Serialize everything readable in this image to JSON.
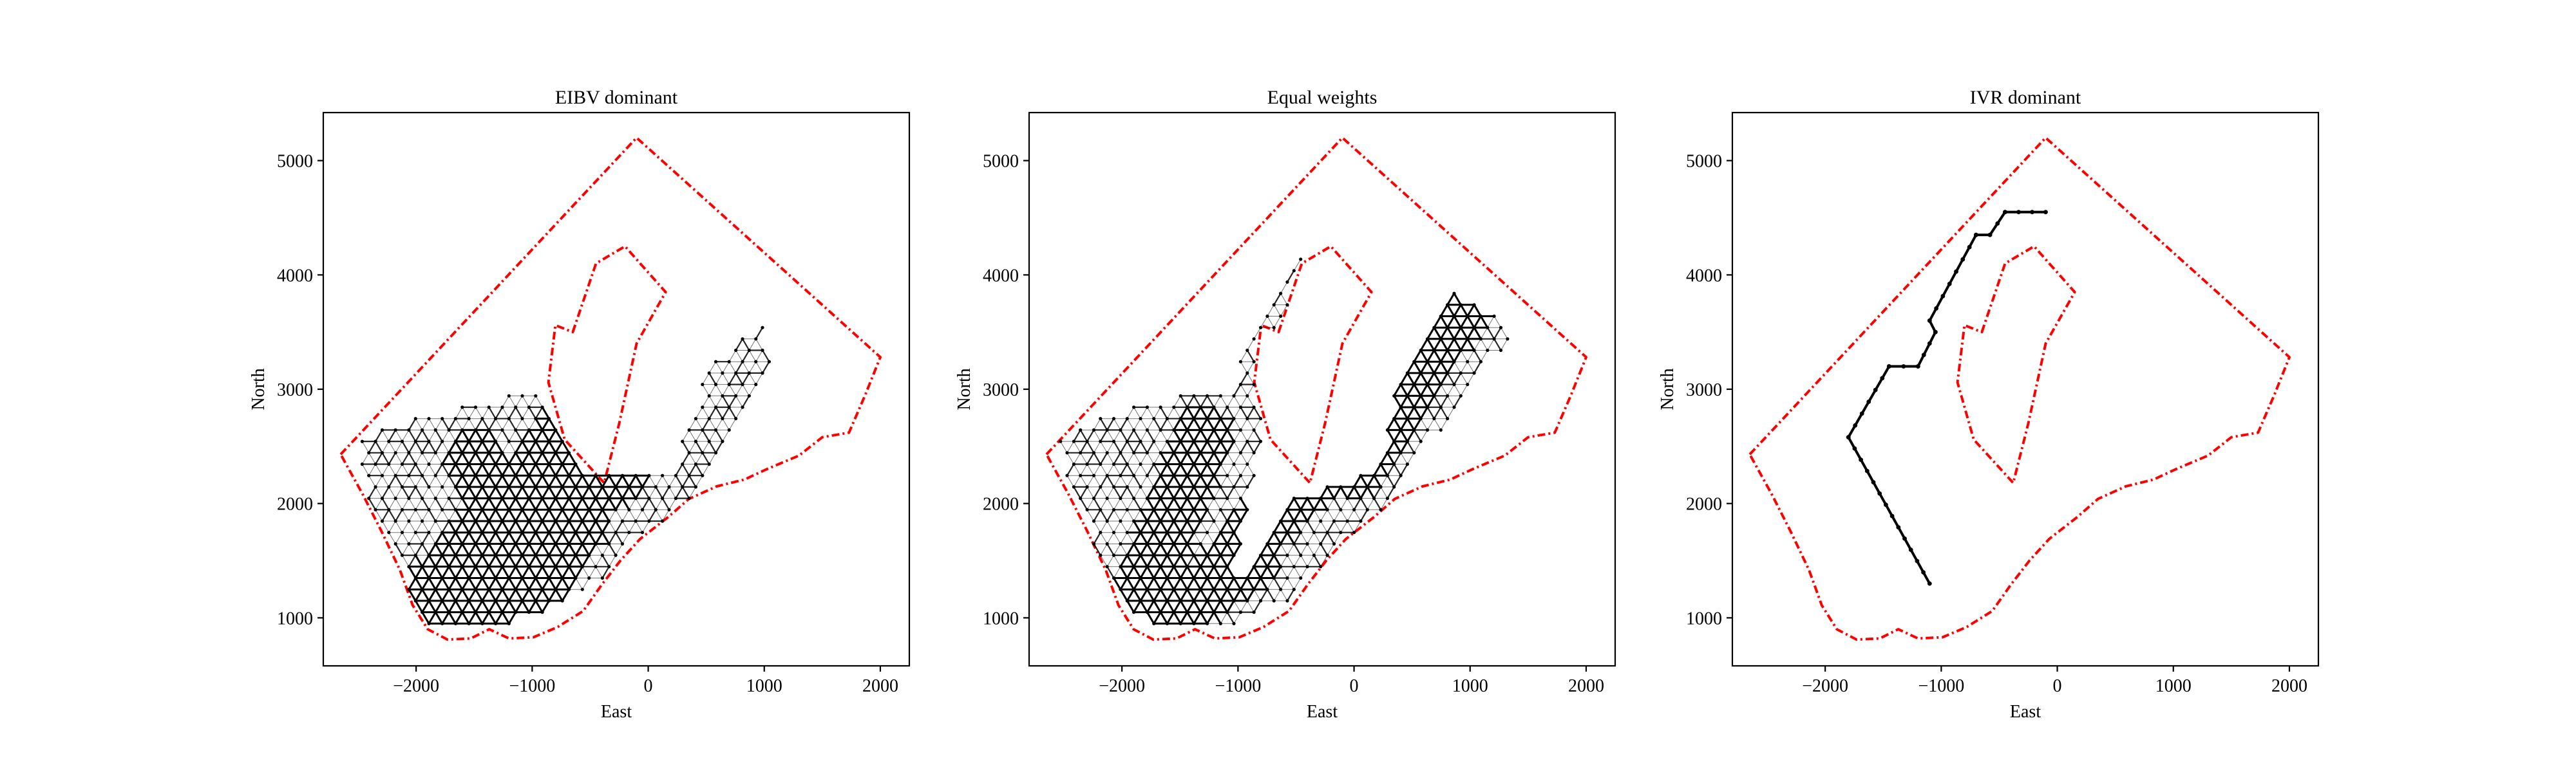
{
  "colors": {
    "boundary": "#ff0000",
    "graph": "#000000",
    "frame": "#000000"
  },
  "chart_data": [
    {
      "type": "line",
      "title": "EIBV dominant",
      "xlabel": "East",
      "ylabel": "North",
      "xlim": [
        -2800,
        2250
      ],
      "ylim": [
        580,
        5420
      ],
      "xticks": [
        -2000,
        -1000,
        0,
        1000,
        2000
      ],
      "xtick_labels": [
        "−2000",
        "−1000",
        "0",
        "1000",
        "2000"
      ],
      "yticks": [
        1000,
        2000,
        3000,
        4000,
        5000
      ],
      "ytick_labels": [
        "1000",
        "2000",
        "3000",
        "4000",
        "5000"
      ],
      "grid": false,
      "boundary_outer": [
        [
          -2650,
          2430
        ],
        [
          -100,
          5200
        ],
        [
          2000,
          3280
        ],
        [
          1870,
          2950
        ],
        [
          1730,
          2620
        ],
        [
          1500,
          2580
        ],
        [
          1300,
          2420
        ],
        [
          1020,
          2300
        ],
        [
          830,
          2210
        ],
        [
          590,
          2150
        ],
        [
          350,
          2040
        ],
        [
          170,
          1880
        ],
        [
          -70,
          1690
        ],
        [
          -240,
          1500
        ],
        [
          -400,
          1290
        ],
        [
          -560,
          1060
        ],
        [
          -780,
          920
        ],
        [
          -990,
          830
        ],
        [
          -1200,
          820
        ],
        [
          -1370,
          900
        ],
        [
          -1530,
          820
        ],
        [
          -1730,
          810
        ],
        [
          -1900,
          900
        ],
        [
          -2030,
          1110
        ],
        [
          -2140,
          1420
        ],
        [
          -2300,
          1760
        ],
        [
          -2460,
          2080
        ],
        [
          -2650,
          2430
        ]
      ],
      "boundary_inner": [
        [
          -650,
          3500
        ],
        [
          -450,
          4100
        ],
        [
          -200,
          4250
        ],
        [
          150,
          3850
        ],
        [
          -100,
          3400
        ],
        [
          -250,
          2700
        ],
        [
          -380,
          2180
        ],
        [
          -720,
          2560
        ],
        [
          -860,
          3060
        ],
        [
          -800,
          3560
        ],
        [
          -650,
          3500
        ]
      ],
      "graph": {
        "region": [
          [
            -2350,
            1000
          ],
          [
            -2500,
            2600
          ],
          [
            -1500,
            2900
          ],
          [
            -1000,
            3000
          ],
          [
            -500,
            2300
          ],
          [
            200,
            2300
          ],
          [
            500,
            3200
          ],
          [
            1000,
            3600
          ],
          [
            1100,
            3200
          ],
          [
            700,
            2600
          ],
          [
            200,
            1700
          ],
          [
            -600,
            1200
          ],
          [
            -1200,
            900
          ],
          [
            -2000,
            900
          ]
        ],
        "ox": -2350,
        "oy": 950,
        "spacing": 115,
        "heavy": [
          [
            -2100,
            950
          ],
          [
            -400,
            3000
          ],
          [
            -1800,
            950
          ],
          [
            -500,
            2300
          ],
          [
            -900,
            1200
          ],
          [
            -1500,
            2400
          ],
          [
            -1200,
            950
          ],
          [
            -600,
            1800
          ],
          [
            -300,
            2200
          ],
          [
            0,
            2600
          ]
        ],
        "path": null
      }
    },
    {
      "type": "line",
      "title": "Equal weights",
      "xlabel": "East",
      "ylabel": "North",
      "xlim": [
        -2800,
        2250
      ],
      "ylim": [
        580,
        5420
      ],
      "xticks": [
        -2000,
        -1000,
        0,
        1000,
        2000
      ],
      "xtick_labels": [
        "−2000",
        "−1000",
        "0",
        "1000",
        "2000"
      ],
      "yticks": [
        1000,
        2000,
        3000,
        4000,
        5000
      ],
      "ytick_labels": [
        "1000",
        "2000",
        "3000",
        "4000",
        "5000"
      ],
      "grid": false,
      "boundary_outer": [
        [
          -2650,
          2430
        ],
        [
          -100,
          5200
        ],
        [
          2000,
          3280
        ],
        [
          1870,
          2950
        ],
        [
          1730,
          2620
        ],
        [
          1500,
          2580
        ],
        [
          1300,
          2420
        ],
        [
          1020,
          2300
        ],
        [
          830,
          2210
        ],
        [
          590,
          2150
        ],
        [
          350,
          2040
        ],
        [
          170,
          1880
        ],
        [
          -70,
          1690
        ],
        [
          -240,
          1500
        ],
        [
          -400,
          1290
        ],
        [
          -560,
          1060
        ],
        [
          -780,
          920
        ],
        [
          -990,
          830
        ],
        [
          -1200,
          820
        ],
        [
          -1370,
          900
        ],
        [
          -1530,
          820
        ],
        [
          -1730,
          810
        ],
        [
          -1900,
          900
        ],
        [
          -2030,
          1110
        ],
        [
          -2140,
          1420
        ],
        [
          -2300,
          1760
        ],
        [
          -2460,
          2080
        ],
        [
          -2650,
          2430
        ]
      ],
      "boundary_inner": [
        [
          -650,
          3500
        ],
        [
          -450,
          4100
        ],
        [
          -200,
          4250
        ],
        [
          150,
          3850
        ],
        [
          -100,
          3400
        ],
        [
          -250,
          2700
        ],
        [
          -380,
          2180
        ],
        [
          -720,
          2560
        ],
        [
          -860,
          3060
        ],
        [
          -800,
          3560
        ],
        [
          -650,
          3500
        ]
      ],
      "graph": {
        "region": [
          [
            -2300,
            1000
          ],
          [
            -2550,
            2600
          ],
          [
            -1800,
            2900
          ],
          [
            -1100,
            3000
          ],
          [
            -400,
            4400
          ],
          [
            -1000,
            1400
          ],
          [
            -500,
            2100
          ],
          [
            200,
            2300
          ],
          [
            400,
            3200
          ],
          [
            900,
            3900
          ],
          [
            1400,
            3500
          ],
          [
            800,
            2700
          ],
          [
            300,
            2000
          ],
          [
            -400,
            1200
          ],
          [
            -1000,
            950
          ],
          [
            -1800,
            950
          ]
        ],
        "ox": -2300,
        "oy": 950,
        "spacing": 115,
        "heavy": [
          [
            -1900,
            1000
          ],
          [
            -1300,
            2600
          ],
          [
            -1600,
            1000
          ],
          [
            -900,
            1500
          ],
          [
            -1200,
            1300
          ],
          [
            -300,
            2500
          ],
          [
            -700,
            1900
          ],
          [
            300,
            2900
          ],
          [
            0,
            2300
          ],
          [
            900,
            3700
          ]
        ],
        "path": null
      }
    },
    {
      "type": "line",
      "title": "IVR dominant",
      "xlabel": "East",
      "ylabel": "North",
      "xlim": [
        -2800,
        2250
      ],
      "ylim": [
        580,
        5420
      ],
      "xticks": [
        -2000,
        -1000,
        0,
        1000,
        2000
      ],
      "xtick_labels": [
        "−2000",
        "−1000",
        "0",
        "1000",
        "2000"
      ],
      "yticks": [
        1000,
        2000,
        3000,
        4000,
        5000
      ],
      "ytick_labels": [
        "1000",
        "2000",
        "3000",
        "4000",
        "5000"
      ],
      "grid": false,
      "boundary_outer": [
        [
          -2650,
          2430
        ],
        [
          -100,
          5200
        ],
        [
          2000,
          3280
        ],
        [
          1870,
          2950
        ],
        [
          1730,
          2620
        ],
        [
          1500,
          2580
        ],
        [
          1300,
          2420
        ],
        [
          1020,
          2300
        ],
        [
          830,
          2210
        ],
        [
          590,
          2150
        ],
        [
          350,
          2040
        ],
        [
          170,
          1880
        ],
        [
          -70,
          1690
        ],
        [
          -240,
          1500
        ],
        [
          -400,
          1290
        ],
        [
          -560,
          1060
        ],
        [
          -780,
          920
        ],
        [
          -990,
          830
        ],
        [
          -1200,
          820
        ],
        [
          -1370,
          900
        ],
        [
          -1530,
          820
        ],
        [
          -1730,
          810
        ],
        [
          -1900,
          900
        ],
        [
          -2030,
          1110
        ],
        [
          -2140,
          1420
        ],
        [
          -2300,
          1760
        ],
        [
          -2460,
          2080
        ],
        [
          -2650,
          2430
        ]
      ],
      "boundary_inner": [
        [
          -650,
          3500
        ],
        [
          -450,
          4100
        ],
        [
          -200,
          4250
        ],
        [
          150,
          3850
        ],
        [
          -100,
          3400
        ],
        [
          -250,
          2700
        ],
        [
          -380,
          2180
        ],
        [
          -720,
          2560
        ],
        [
          -860,
          3060
        ],
        [
          -800,
          3560
        ],
        [
          -650,
          3500
        ]
      ],
      "graph": null,
      "path": [
        [
          -1100,
          1300
        ],
        [
          -1800,
          2580
        ],
        [
          -1450,
          3200
        ],
        [
          -1200,
          3200
        ],
        [
          -1050,
          3500
        ],
        [
          -1100,
          3600
        ],
        [
          -700,
          4350
        ],
        [
          -580,
          4350
        ],
        [
          -450,
          4550
        ],
        [
          -100,
          4550
        ]
      ]
    }
  ]
}
